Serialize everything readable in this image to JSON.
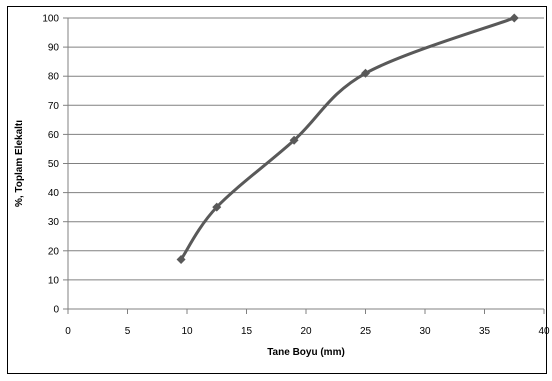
{
  "chart_data": {
    "type": "line",
    "title": "",
    "xlabel": "Tane Boyu (mm)",
    "ylabel": "%, Toplam Elekaltı",
    "xlim": [
      0,
      40
    ],
    "ylim": [
      0,
      100
    ],
    "x_ticks": [
      0,
      5,
      10,
      15,
      20,
      25,
      30,
      35,
      40
    ],
    "y_ticks": [
      0,
      10,
      20,
      30,
      40,
      50,
      60,
      70,
      80,
      90,
      100
    ],
    "grid": "horizontal",
    "legend": "none",
    "series": [
      {
        "x": [
          9.5,
          12.5,
          19,
          25,
          37.5
        ],
        "y": [
          17,
          35,
          58,
          81,
          100
        ]
      }
    ],
    "colors": {
      "line": "#595959",
      "marker": "#595959",
      "grid": "#808080"
    }
  }
}
